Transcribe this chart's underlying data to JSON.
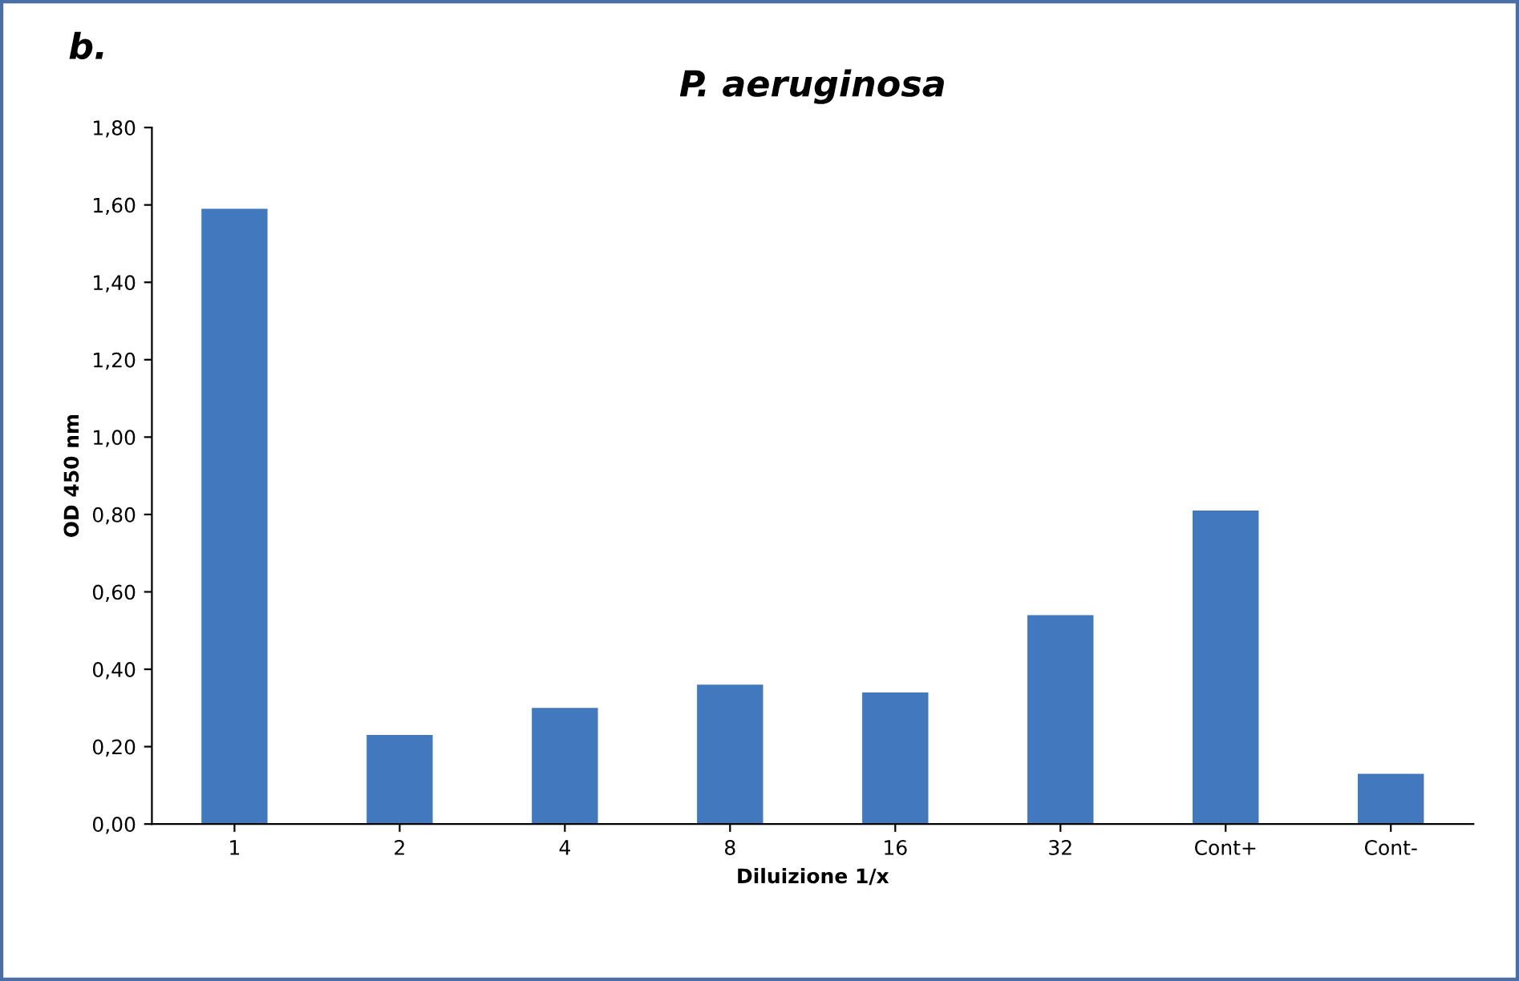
{
  "chart_data": {
    "type": "bar",
    "title": "P. aeruginosa",
    "xlabel": "Diluizione 1/x",
    "ylabel": "OD 450 nm",
    "annotations": [
      "b."
    ],
    "categories": [
      "1",
      "2",
      "4",
      "8",
      "16",
      "32",
      "Cont+",
      "Cont-"
    ],
    "values": [
      1.59,
      0.23,
      0.3,
      0.36,
      0.34,
      0.54,
      0.81,
      0.13
    ],
    "color": "#4178be",
    "ylim": [
      0,
      1.8
    ],
    "yticks": [
      {
        "value": 0,
        "label": "0,00"
      },
      {
        "value": 0.2,
        "label": "0,20"
      },
      {
        "value": 0.4,
        "label": "0,40"
      },
      {
        "value": 0.6,
        "label": "0,60"
      },
      {
        "value": 0.8,
        "label": "0,80"
      },
      {
        "value": 1.0,
        "label": "1,00"
      },
      {
        "value": 1.2,
        "label": "1,20"
      },
      {
        "value": 1.4,
        "label": "1,40"
      },
      {
        "value": 1.6,
        "label": "1,60"
      },
      {
        "value": 1.8,
        "label": "1,80"
      }
    ],
    "grid": false,
    "legend": false
  }
}
